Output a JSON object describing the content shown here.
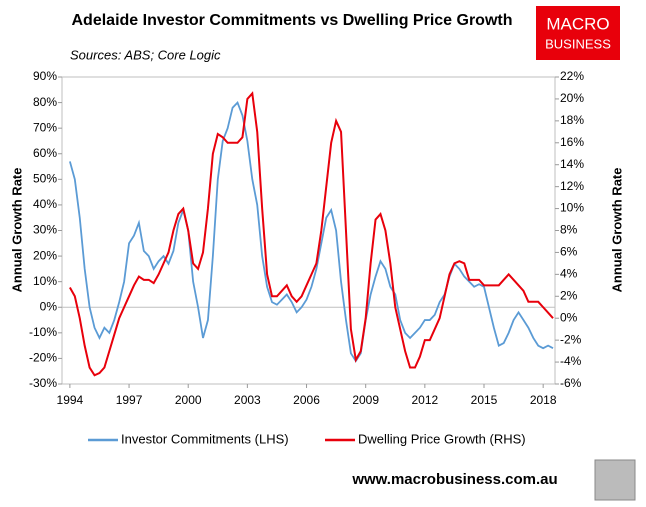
{
  "chart_data": {
    "type": "line",
    "title": "Adelaide Investor Commitments vs Dwelling Price Growth",
    "subtitle": "Sources: ABS; Core Logic",
    "ylabel": "Annual Growth Rate",
    "y2label": "Annual Growth Rate",
    "logo": [
      "MACRO",
      "BUSINESS"
    ],
    "footer": "www.macrobusiness.com.au",
    "grid": false,
    "legend": "bottom",
    "xlim": [
      1993.6,
      2018.6
    ],
    "xticks": [
      1994,
      1997,
      2000,
      2003,
      2006,
      2009,
      2012,
      2015,
      2018
    ],
    "ylim": [
      -30,
      90
    ],
    "yticks": [
      {
        "value": -30,
        "label": "-30%"
      },
      {
        "value": -20,
        "label": "-20%"
      },
      {
        "value": -10,
        "label": "-10%"
      },
      {
        "value": 0,
        "label": "0%"
      },
      {
        "value": 10,
        "label": "10%"
      },
      {
        "value": 20,
        "label": "20%"
      },
      {
        "value": 30,
        "label": "30%"
      },
      {
        "value": 40,
        "label": "40%"
      },
      {
        "value": 50,
        "label": "50%"
      },
      {
        "value": 60,
        "label": "60%"
      },
      {
        "value": 70,
        "label": "70%"
      },
      {
        "value": 80,
        "label": "80%"
      },
      {
        "value": 90,
        "label": "90%"
      }
    ],
    "y2lim": [
      -6,
      22
    ],
    "y2ticks": [
      {
        "value": -6,
        "label": "-6%"
      },
      {
        "value": -4,
        "label": "-4%"
      },
      {
        "value": -2,
        "label": "-2%"
      },
      {
        "value": 0,
        "label": "0%"
      },
      {
        "value": 2,
        "label": "2%"
      },
      {
        "value": 4,
        "label": "4%"
      },
      {
        "value": 6,
        "label": "6%"
      },
      {
        "value": 8,
        "label": "8%"
      },
      {
        "value": 10,
        "label": "10%"
      },
      {
        "value": 12,
        "label": "12%"
      },
      {
        "value": 14,
        "label": "14%"
      },
      {
        "value": 16,
        "label": "16%"
      },
      {
        "value": 18,
        "label": "18%"
      },
      {
        "value": 20,
        "label": "20%"
      },
      {
        "value": 22,
        "label": "22%"
      }
    ],
    "x": [
      1994,
      1994.25,
      1994.5,
      1994.75,
      1995,
      1995.25,
      1995.5,
      1995.75,
      1996,
      1996.25,
      1996.5,
      1996.75,
      1997,
      1997.25,
      1997.5,
      1997.75,
      1998,
      1998.25,
      1998.5,
      1998.75,
      1999,
      1999.25,
      1999.5,
      1999.75,
      2000,
      2000.25,
      2000.5,
      2000.75,
      2001,
      2001.25,
      2001.5,
      2001.75,
      2002,
      2002.25,
      2002.5,
      2002.75,
      2003,
      2003.25,
      2003.5,
      2003.75,
      2004,
      2004.25,
      2004.5,
      2004.75,
      2005,
      2005.25,
      2005.5,
      2005.75,
      2006,
      2006.25,
      2006.5,
      2006.75,
      2007,
      2007.25,
      2007.5,
      2007.75,
      2008,
      2008.25,
      2008.5,
      2008.75,
      2009,
      2009.25,
      2009.5,
      2009.75,
      2010,
      2010.25,
      2010.5,
      2010.75,
      2011,
      2011.25,
      2011.5,
      2011.75,
      2012,
      2012.25,
      2012.5,
      2012.75,
      2013,
      2013.25,
      2013.5,
      2013.75,
      2014,
      2014.25,
      2014.5,
      2014.75,
      2015,
      2015.25,
      2015.5,
      2015.75,
      2016,
      2016.25,
      2016.5,
      2016.75,
      2017,
      2017.25,
      2017.5,
      2017.75,
      2018,
      2018.25,
      2018.5
    ],
    "series": [
      {
        "name": "Investor Commitments (LHS)",
        "color": "#5b9bd5",
        "axis": "y",
        "values": [
          57,
          50,
          35,
          15,
          0,
          -8,
          -12,
          -8,
          -10,
          -5,
          2,
          10,
          25,
          28,
          33,
          22,
          20,
          15,
          18,
          20,
          17,
          22,
          33,
          38,
          30,
          10,
          0,
          -12,
          -5,
          20,
          50,
          65,
          70,
          78,
          80,
          75,
          65,
          50,
          40,
          20,
          8,
          2,
          1,
          3,
          5,
          2,
          -2,
          0,
          3,
          8,
          15,
          25,
          35,
          38,
          30,
          10,
          -5,
          -18,
          -21,
          -18,
          -5,
          5,
          12,
          18,
          15,
          8,
          5,
          -5,
          -10,
          -12,
          -10,
          -8,
          -5,
          -5,
          -3,
          2,
          5,
          12,
          17,
          15,
          12,
          10,
          8,
          9,
          8,
          0,
          -8,
          -15,
          -14,
          -10,
          -5,
          -2,
          -5,
          -8,
          -12,
          -15,
          -16,
          -15,
          -16
        ]
      },
      {
        "name": "Dwelling Price Growth (RHS)",
        "color": "#e8000b",
        "axis": "y2",
        "values": [
          2.8,
          2,
          0,
          -2.5,
          -4.5,
          -5.2,
          -5,
          -4.5,
          -3,
          -1.5,
          0,
          1,
          2,
          3,
          3.8,
          3.5,
          3.5,
          3.2,
          4,
          5,
          6,
          8,
          9.5,
          10,
          8,
          5,
          4.5,
          6,
          10,
          15,
          16.8,
          16.5,
          16,
          16,
          16,
          16.5,
          20,
          20.5,
          17,
          10,
          4,
          2,
          2,
          2.5,
          3,
          2,
          1.5,
          2,
          3,
          4,
          5,
          8,
          12,
          16,
          18,
          17,
          8,
          -1,
          -3.8,
          -3,
          0,
          5,
          9,
          9.5,
          8,
          5,
          1,
          -1,
          -3,
          -4.5,
          -4.5,
          -3.5,
          -2,
          -2,
          -1,
          0,
          2,
          4,
          5,
          5.2,
          5,
          3.5,
          3.5,
          3.5,
          3,
          3,
          3,
          3,
          3.5,
          4,
          3.5,
          3,
          2.5,
          1.5,
          1.5,
          1.5,
          1,
          0.5,
          0
        ]
      }
    ]
  }
}
